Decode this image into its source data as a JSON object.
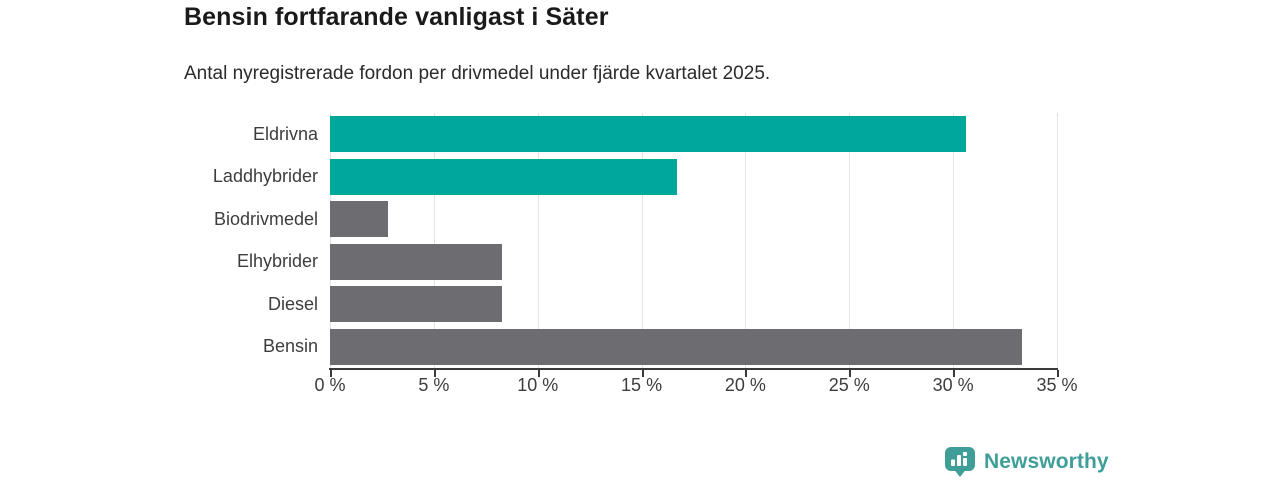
{
  "header": {
    "title": "Bensin fortfarande vanligast i Säter",
    "subtitle": "Antal nyregistrerade fordon per drivmedel under fjärde kvartalet 2025."
  },
  "chart_data": {
    "type": "bar",
    "orientation": "horizontal",
    "title": "Bensin fortfarande vanligast i Säter",
    "subtitle": "Antal nyregistrerade fordon per drivmedel under fjärde kvartalet 2025.",
    "categories": [
      "Eldrivna",
      "Laddhybrider",
      "Biodrivmedel",
      "Elhybrider",
      "Diesel",
      "Bensin"
    ],
    "values": [
      30.6,
      16.7,
      2.8,
      8.3,
      8.3,
      33.3
    ],
    "unit": "%",
    "xlim": [
      0,
      35
    ],
    "x_ticks": [
      0,
      5,
      10,
      15,
      20,
      25,
      30,
      35
    ],
    "x_tick_labels": [
      "0 %",
      "5 %",
      "10 %",
      "15 %",
      "20 %",
      "25 %",
      "30 %",
      "35 %"
    ],
    "grid": true,
    "legend": "none",
    "bar_colors": [
      "#00a79b",
      "#00a79b",
      "#6d6d71",
      "#6d6d71",
      "#6d6d71",
      "#6d6d71"
    ],
    "colors": {
      "highlight": "#00a79b",
      "default": "#6d6d71",
      "gridline": "#e4e4e4",
      "axis": "#3a3a3a",
      "text": "#3d3d3d"
    }
  },
  "footer": {
    "brand": "Newsworthy",
    "brand_color": "#3f9e98",
    "logo_icon": "newsworthy-pin-barchart-icon"
  }
}
